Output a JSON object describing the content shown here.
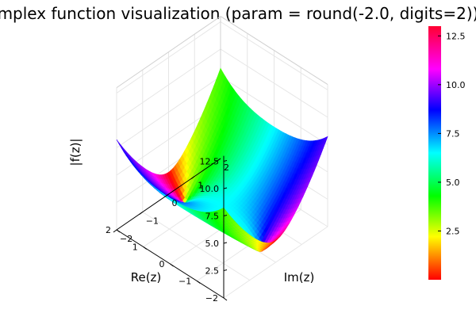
{
  "chart_data": {
    "type": "surface3d",
    "title": "mplex function visualization (param = round(-2.0, digits=2))",
    "xlabel": "Re(z)",
    "ylabel": "Im(z)",
    "zlabel": "|f(z)|",
    "xlim": [
      -2,
      2
    ],
    "ylim": [
      -2,
      2
    ],
    "zlim": [
      0,
      13
    ],
    "x_ticks": [
      "−2",
      "−1",
      "0",
      "1",
      "2"
    ],
    "y_ticks": [
      "−2",
      "−1",
      "0",
      "1",
      "2"
    ],
    "z_ticks": [
      "2.5",
      "5.0",
      "7.5",
      "10.0",
      "12.5"
    ],
    "param": -2.0,
    "color_by": "arg(f(z))",
    "colorbar": {
      "colormap": "hsv",
      "range": [
        0,
        13
      ],
      "ticks": [
        "2.5",
        "5.0",
        "7.5",
        "10.0",
        "12.5"
      ]
    },
    "grid": true,
    "legend": "none"
  }
}
